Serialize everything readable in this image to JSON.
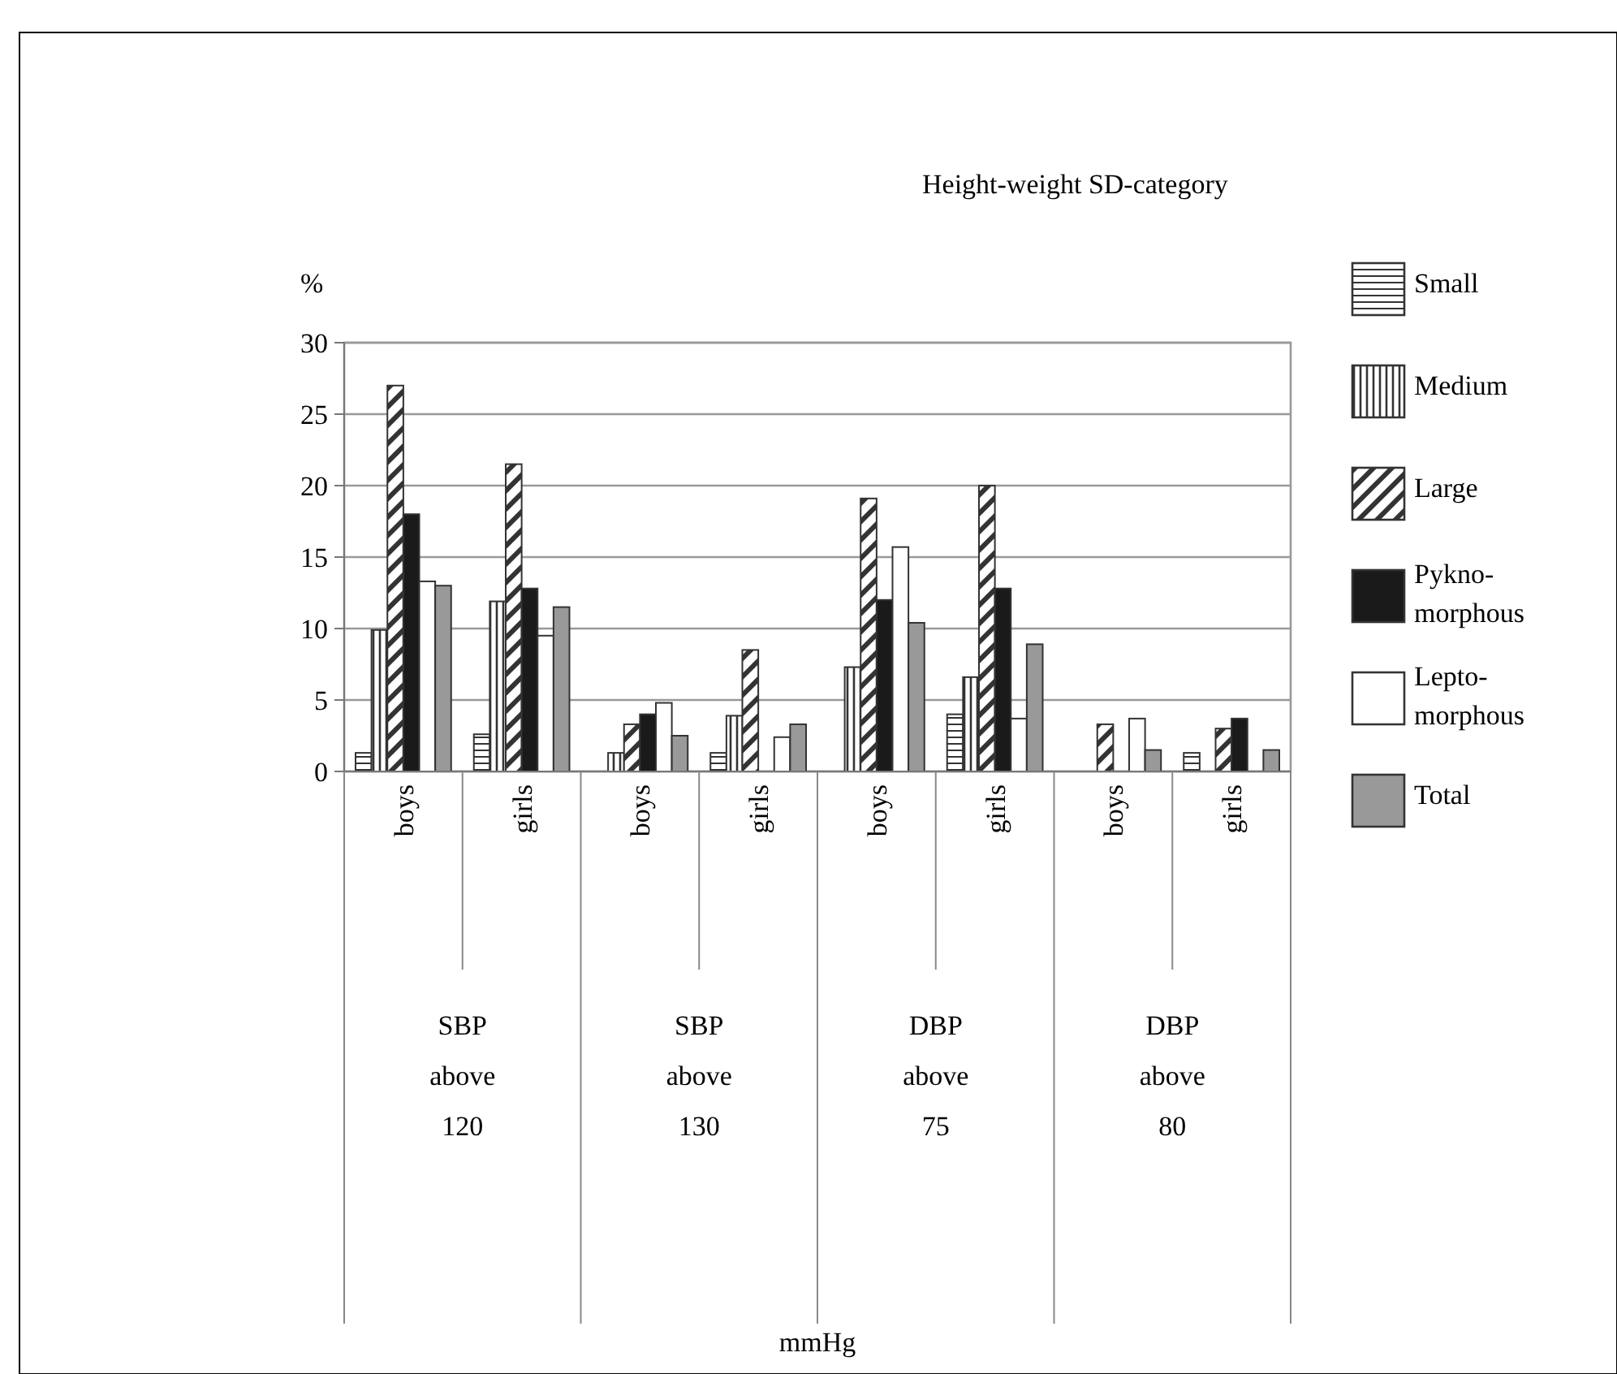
{
  "chart_data": {
    "type": "bar",
    "legend_title": "Height-weight SD-category",
    "ylabel": "%",
    "categories": [
      "boys",
      "girls",
      "boys",
      "girls",
      "boys",
      "girls",
      "boys",
      "girls"
    ],
    "annotations": [
      "SBP above 120",
      "SBP above 130",
      "DBP above 75",
      "DBP above 80",
      "mmHg"
    ],
    "series": [
      {
        "name": "Small",
        "color": "#333333",
        "values": [
          1.3,
          2.6,
          0,
          1.3,
          0,
          4.0,
          0,
          1.3
        ]
      },
      {
        "name": "Medium",
        "color": "#333333",
        "values": [
          9.9,
          11.9,
          1.3,
          3.9,
          7.3,
          6.6,
          0,
          0
        ]
      },
      {
        "name": "Large",
        "color": "#333333",
        "values": [
          27,
          21.5,
          3.3,
          8.5,
          19.1,
          20,
          3.3,
          3.0
        ]
      },
      {
        "name": "Pykno-morphous",
        "color": "#1a1a1a",
        "values": [
          18,
          12.8,
          4.0,
          0,
          12.0,
          12.8,
          0,
          3.7
        ]
      },
      {
        "name": "Lepto-morphous",
        "color": "#ffffff",
        "values": [
          13.3,
          9.5,
          4.8,
          2.4,
          15.7,
          3.7,
          3.7,
          0
        ]
      },
      {
        "name": "Total",
        "color": "#999999",
        "values": [
          13,
          11.5,
          2.5,
          3.3,
          10.4,
          8.9,
          1.5,
          1.5
        ]
      }
    ],
    "ylim": [
      0,
      30
    ],
    "yticks": [
      0,
      5,
      10,
      15,
      20,
      25,
      30
    ],
    "grid": "y",
    "legend": "right"
  }
}
